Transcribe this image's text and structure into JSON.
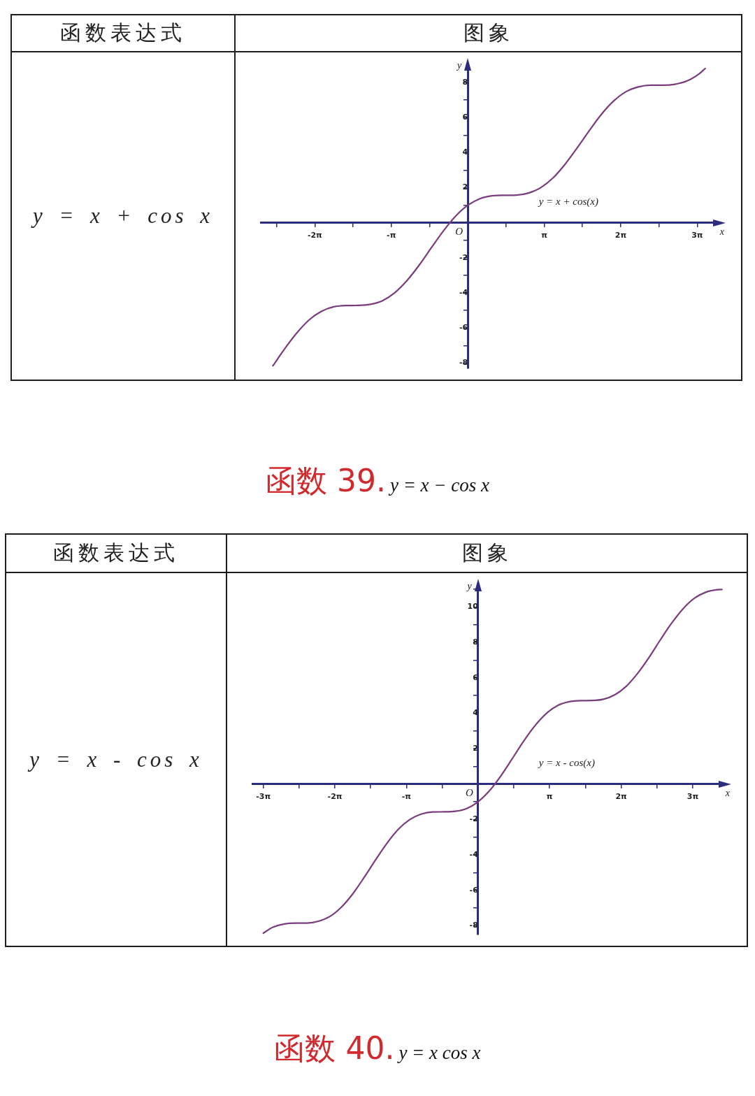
{
  "chart_data": [
    {
      "type": "line",
      "annotations": [
        "函数表达式",
        "图象",
        "y = x + cos x",
        "O"
      ],
      "xlabel": "x",
      "ylabel": "y",
      "x": [
        -8,
        -7.5,
        -7,
        -6.5,
        -6,
        -5.5,
        -5,
        -4.5,
        -4,
        -3.5,
        -3,
        -2.5,
        -2,
        -1.5,
        -1,
        -0.5,
        0,
        0.5,
        1,
        1.5,
        2,
        2.5,
        3,
        3.5,
        4,
        4.5,
        5,
        5.5,
        6,
        6.5,
        7,
        7.5,
        8,
        8.5,
        9,
        9.5,
        9.75
      ],
      "series": [
        {
          "name": "y = x + cos(x)",
          "color": "#7a3c7c",
          "values": [
            -8.15,
            -7.15,
            -6.25,
            -5.52,
            -5.04,
            -4.79,
            -4.72,
            -4.71,
            -4.65,
            -4.44,
            -3.99,
            -3.3,
            -2.42,
            -1.43,
            -0.46,
            0.38,
            1,
            1.38,
            1.54,
            1.57,
            1.58,
            1.7,
            2.01,
            2.56,
            3.35,
            4.29,
            5.28,
            6.21,
            6.96,
            7.48,
            7.75,
            7.85,
            7.85,
            7.9,
            8.09,
            8.5,
            8.8
          ]
        }
      ],
      "xlim": [
        -8.5,
        10.3
      ],
      "ylim": [
        -8.3,
        9
      ],
      "xticks": [
        {
          "value": -7.85,
          "label": null
        },
        {
          "value": -6.28,
          "label": "-2π"
        },
        {
          "value": -4.71,
          "label": null
        },
        {
          "value": -3.14,
          "label": "-π"
        },
        {
          "value": -1.57,
          "label": null
        },
        {
          "value": 1.57,
          "label": null
        },
        {
          "value": 3.14,
          "label": "π"
        },
        {
          "value": 4.71,
          "label": null
        },
        {
          "value": 6.28,
          "label": "2π"
        },
        {
          "value": 7.85,
          "label": null
        },
        {
          "value": 9.42,
          "label": "3π"
        }
      ],
      "yticks": [
        -8,
        {
          "value": -7,
          "label": null
        },
        -6,
        {
          "value": -5,
          "label": null
        },
        -4,
        {
          "value": -3,
          "label": null
        },
        -2,
        {
          "value": -1,
          "label": null
        },
        {
          "value": 1,
          "label": null
        },
        2,
        {
          "value": 3,
          "label": null
        },
        4,
        {
          "value": 5,
          "label": null
        },
        6,
        {
          "value": 7,
          "label": null
        },
        8
      ],
      "marker": "none",
      "line_style": "solid"
    },
    {
      "type": "line",
      "title": "函数 39.",
      "subtitle": "y = x − cos x",
      "annotations": [
        "函数表达式",
        "图象",
        "y = x - cos x",
        "O",
        "函数 40.",
        "y = x cos x"
      ],
      "xlabel": "x",
      "ylabel": "y",
      "x": [
        -9.42,
        -9,
        -8.5,
        -8,
        -7.5,
        -7,
        -6.5,
        -6,
        -5.5,
        -5,
        -4.5,
        -4,
        -3.5,
        -3,
        -2.5,
        -2,
        -1.5,
        -1,
        -0.5,
        0,
        0.5,
        1,
        1.5,
        2,
        2.5,
        3,
        3.5,
        4,
        4.5,
        5,
        5.5,
        6,
        6.5,
        7,
        7.5,
        8,
        8.5,
        9,
        9.5,
        10,
        10.5,
        10.7
      ],
      "series": [
        {
          "name": "y = x - cos(x)",
          "color": "#7a3c7c",
          "values": [
            -8.42,
            -8.09,
            -7.9,
            -7.85,
            -7.85,
            -7.75,
            -7.48,
            -6.96,
            -6.21,
            -5.28,
            -4.29,
            -3.35,
            -2.56,
            -2.01,
            -1.7,
            -1.58,
            -1.57,
            -1.54,
            -1.38,
            -1,
            -0.38,
            0.46,
            1.43,
            2.42,
            3.3,
            3.99,
            4.44,
            4.65,
            4.71,
            4.72,
            4.79,
            5.04,
            5.52,
            6.25,
            7.15,
            8.15,
            9.1,
            9.91,
            10.5,
            10.84,
            10.98,
            10.99
          ]
        }
      ],
      "xlim": [
        -9.9,
        10.8
      ],
      "ylim": [
        -8.5,
        11.2
      ],
      "xticks": [
        {
          "value": -9.42,
          "label": "-3π"
        },
        {
          "value": -7.85,
          "label": null
        },
        {
          "value": -6.28,
          "label": "-2π"
        },
        {
          "value": -4.71,
          "label": null
        },
        {
          "value": -3.14,
          "label": "-π"
        },
        {
          "value": -1.57,
          "label": null
        },
        {
          "value": 1.57,
          "label": null
        },
        {
          "value": 3.14,
          "label": "π"
        },
        {
          "value": 4.71,
          "label": null
        },
        {
          "value": 6.28,
          "label": "2π"
        },
        {
          "value": 7.85,
          "label": null
        },
        {
          "value": 9.42,
          "label": "3π"
        }
      ],
      "yticks": [
        -8,
        {
          "value": -7,
          "label": null
        },
        -6,
        {
          "value": -5,
          "label": null
        },
        -4,
        {
          "value": -3,
          "label": null
        },
        -2,
        {
          "value": -1,
          "label": null
        },
        {
          "value": 1,
          "label": null
        },
        2,
        {
          "value": 3,
          "label": null
        },
        4,
        {
          "value": 5,
          "label": null
        },
        6,
        {
          "value": 7,
          "label": null
        },
        8,
        {
          "value": 9,
          "label": null
        },
        10,
        {
          "value": 11,
          "label": null
        }
      ],
      "marker": "none",
      "line_style": "solid"
    }
  ]
}
